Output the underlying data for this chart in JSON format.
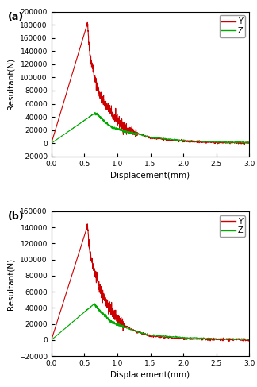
{
  "title_a": "(a)",
  "title_b": "(b)",
  "xlabel": "Displacement(mm)",
  "ylabel": "Resultant(N)",
  "xlim": [
    0,
    3
  ],
  "ylim_a": [
    -20000,
    200000
  ],
  "ylim_b": [
    -20000,
    160000
  ],
  "yticks_a": [
    -20000,
    0,
    20000,
    40000,
    60000,
    80000,
    100000,
    120000,
    140000,
    160000,
    180000,
    200000
  ],
  "yticks_b": [
    -20000,
    0,
    20000,
    40000,
    60000,
    80000,
    100000,
    120000,
    140000,
    160000
  ],
  "xticks": [
    0,
    0.5,
    1.0,
    1.5,
    2.0,
    2.5,
    3.0
  ],
  "color_Y": "#cc0000",
  "color_Z": "#00aa00",
  "legend_Y": "Y",
  "legend_Z": "Z",
  "linewidth": 0.8,
  "figsize": [
    3.24,
    4.87
  ],
  "dpi": 100
}
